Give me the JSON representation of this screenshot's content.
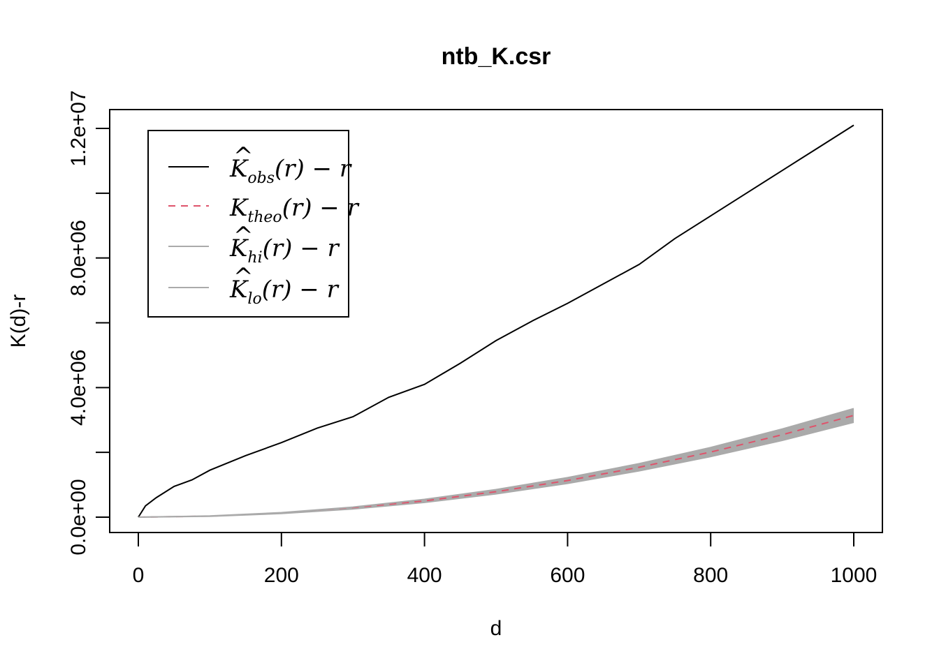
{
  "chart_data": {
    "type": "line",
    "title": "ntb_K.csr",
    "xlabel": "d",
    "ylabel": "K(d)-r",
    "xlim": [
      0,
      1000
    ],
    "ylim": [
      0,
      12000000
    ],
    "x_ticks": [
      0,
      200,
      400,
      600,
      800,
      1000
    ],
    "x_tick_labels": [
      "0",
      "200",
      "400",
      "600",
      "800",
      "1000"
    ],
    "y_ticks": [
      0,
      2000000,
      4000000,
      6000000,
      8000000,
      10000000,
      12000000
    ],
    "y_tick_labels": [
      "0.0e+00",
      "",
      "4.0e+06",
      "",
      "8.0e+06",
      "",
      "1.2e+07"
    ],
    "grid": false,
    "legend_position": "top-left",
    "series": [
      {
        "name": "obs",
        "style": "solid",
        "color": "#000000",
        "x": [
          0,
          10,
          25,
          50,
          75,
          100,
          150,
          200,
          250,
          300,
          350,
          400,
          450,
          500,
          550,
          600,
          650,
          700,
          750,
          800,
          850,
          900,
          950,
          1000
        ],
        "y": [
          0,
          350000,
          600000,
          950000,
          1150000,
          1450000,
          1900000,
          2300000,
          2750000,
          3100000,
          3700000,
          4100000,
          4750000,
          5450000,
          6050000,
          6600000,
          7200000,
          7800000,
          8600000,
          9300000,
          10000000,
          10700000,
          11400000,
          12100000
        ]
      },
      {
        "name": "theo",
        "style": "dashed",
        "color": "#DF536B",
        "x": [
          0,
          100,
          200,
          300,
          400,
          500,
          600,
          700,
          800,
          900,
          1000
        ],
        "y": [
          0,
          31416,
          125664,
          282743,
          502655,
          785398,
          1130973,
          1539380,
          2010619,
          2544690,
          3141593
        ]
      },
      {
        "name": "hi",
        "style": "solid",
        "color": "#AAAAAA",
        "x": [
          0,
          100,
          200,
          300,
          400,
          500,
          600,
          700,
          800,
          900,
          1000
        ],
        "y": [
          0,
          36000,
          140000,
          310000,
          550000,
          850000,
          1220000,
          1650000,
          2150000,
          2720000,
          3350000
        ]
      },
      {
        "name": "lo",
        "style": "solid",
        "color": "#AAAAAA",
        "x": [
          0,
          100,
          200,
          300,
          400,
          500,
          600,
          700,
          800,
          900,
          1000
        ],
        "y": [
          0,
          27000,
          112000,
          255000,
          455000,
          720000,
          1040000,
          1430000,
          1870000,
          2370000,
          2930000
        ]
      }
    ]
  },
  "legend": {
    "items": [
      {
        "base": "K",
        "hat": true,
        "sub": "obs",
        "tail": "(r) − r",
        "color": "#000000",
        "dash": false
      },
      {
        "base": "K",
        "hat": false,
        "sub": "theo",
        "tail": "(r) − r",
        "color": "#DF536B",
        "dash": true
      },
      {
        "base": "K",
        "hat": true,
        "sub": "hi",
        "tail": "(r) − r",
        "color": "#AAAAAA",
        "dash": false
      },
      {
        "base": "K",
        "hat": true,
        "sub": "lo",
        "tail": "(r) − r",
        "color": "#AAAAAA",
        "dash": false
      }
    ]
  }
}
